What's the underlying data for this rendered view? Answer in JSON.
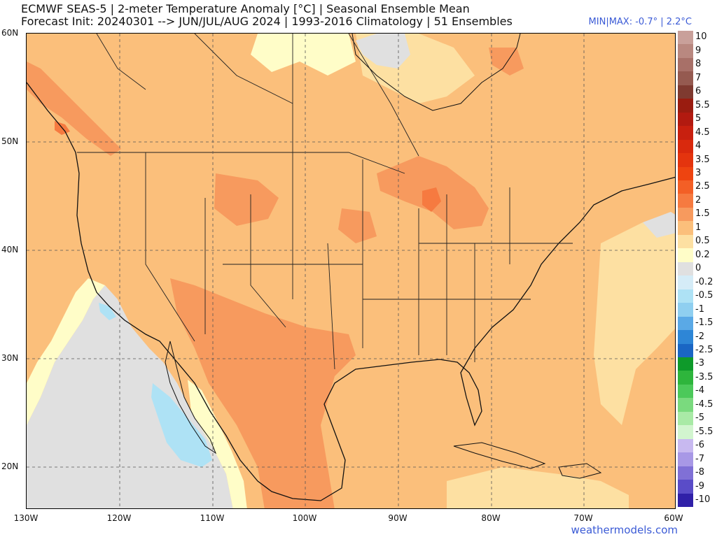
{
  "header": {
    "title_line1": "ECMWF SEAS-5 | 2-meter Temperature Anomaly [°C] | Seasonal Ensemble Mean",
    "title_line2": "Forecast Init: 20240301 --> JUN/JUL/AUG 2024  | 1993-2016 Climatology | 51 Ensembles",
    "minmax": "MIN|MAX: -0.7° | 2.2°C"
  },
  "map": {
    "lat_labels": [
      "60N",
      "50N",
      "40N",
      "30N",
      "20N"
    ],
    "lon_labels": [
      "130W",
      "120W",
      "110W",
      "100W",
      "90W",
      "80W",
      "70W",
      "60W"
    ],
    "extent": {
      "lon_min": -130,
      "lon_max": -60,
      "lat_min": 16,
      "lat_max": 60
    },
    "dominant_anomaly_fill": "#fbbf7b",
    "ocean_neutral_fill": "#e0e0e0"
  },
  "colorbar": {
    "levels": [
      {
        "label": "10",
        "color": "#c9a09a"
      },
      {
        "label": "9",
        "color": "#b98880"
      },
      {
        "label": "8",
        "color": "#a87068"
      },
      {
        "label": "7",
        "color": "#955a50"
      },
      {
        "label": "6",
        "color": "#7f3a30"
      },
      {
        "label": "5.5",
        "color": "#9a1c10"
      },
      {
        "label": "5",
        "color": "#b21a10"
      },
      {
        "label": "4.5",
        "color": "#c8200f"
      },
      {
        "label": "4",
        "color": "#d9290d"
      },
      {
        "label": "3.5",
        "color": "#e4340e"
      },
      {
        "label": "3",
        "color": "#ee4410"
      },
      {
        "label": "2.5",
        "color": "#f35f26"
      },
      {
        "label": "2",
        "color": "#f67a40"
      },
      {
        "label": "1.5",
        "color": "#f79a5e"
      },
      {
        "label": "1",
        "color": "#fbbf7b"
      },
      {
        "label": "0.5",
        "color": "#fde0a2"
      },
      {
        "label": "0.2",
        "color": "#fffdc8"
      },
      {
        "label": "0",
        "color": "#e0e0e0"
      },
      {
        "label": "-0.2",
        "color": "#d5ecf7"
      },
      {
        "label": "-0.5",
        "color": "#aee2f5"
      },
      {
        "label": "-1",
        "color": "#8fcff0"
      },
      {
        "label": "-1.5",
        "color": "#5aa9e6"
      },
      {
        "label": "-2",
        "color": "#2e86d6"
      },
      {
        "label": "-2.5",
        "color": "#1a66c4"
      },
      {
        "label": "-3",
        "color": "#0e9a2a"
      },
      {
        "label": "-3.5",
        "color": "#2eb53c"
      },
      {
        "label": "-4",
        "color": "#4cc95a"
      },
      {
        "label": "-4.5",
        "color": "#7ada7e"
      },
      {
        "label": "-5",
        "color": "#a9eaa6"
      },
      {
        "label": "-5.5",
        "color": "#d2f5cf"
      },
      {
        "label": "-6",
        "color": "#c8b9f0"
      },
      {
        "label": "-7",
        "color": "#a898e6"
      },
      {
        "label": "-8",
        "color": "#8070d6"
      },
      {
        "label": "-9",
        "color": "#5a4cc8"
      },
      {
        "label": "-10",
        "color": "#3020a8"
      }
    ]
  },
  "footer": {
    "credit": "weathermodels.com"
  }
}
